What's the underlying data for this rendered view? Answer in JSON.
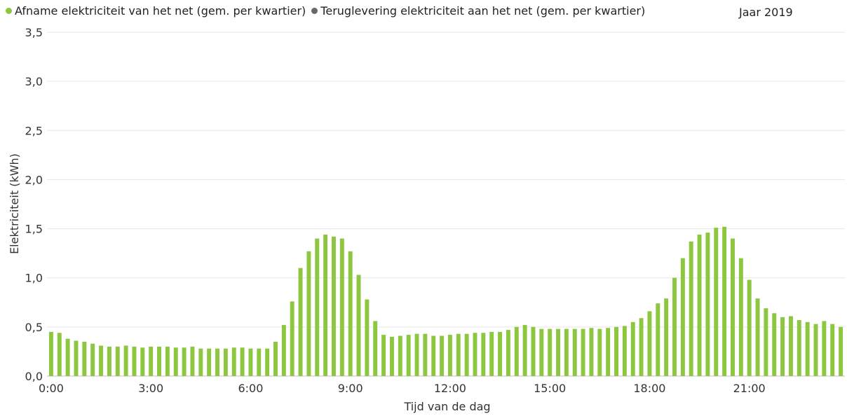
{
  "legend": [
    {
      "label": "Afname elektriciteit van het net (gem. per kwartier)",
      "color": "#8DC63F"
    },
    {
      "label": "Teruglevering elektriciteit aan het net (gem. per kwartier)",
      "color": "#5F6B6D"
    }
  ],
  "year_label": "Jaar 2019",
  "chart_data": {
    "type": "bar",
    "xlabel": "Tijd van de dag",
    "ylabel": "Elektriciteit (kWh)",
    "ylim": [
      0,
      3.5
    ],
    "yticks": [
      "0,0",
      "0,5",
      "1,0",
      "1,5",
      "2,0",
      "2,5",
      "3,0",
      "3,5"
    ],
    "xticks": [
      "0:00",
      "3:00",
      "6:00",
      "9:00",
      "12:00",
      "15:00",
      "18:00",
      "21:00"
    ],
    "grid": true,
    "legend_position": "top-left",
    "series": [
      {
        "name": "Afname elektriciteit van het net (gem. per kwartier)",
        "color": "#8DC63F",
        "values": [
          0.45,
          0.44,
          0.38,
          0.36,
          0.35,
          0.33,
          0.31,
          0.3,
          0.3,
          0.31,
          0.3,
          0.29,
          0.3,
          0.3,
          0.3,
          0.29,
          0.29,
          0.3,
          0.28,
          0.28,
          0.28,
          0.28,
          0.29,
          0.29,
          0.28,
          0.28,
          0.28,
          0.35,
          0.52,
          0.76,
          1.1,
          1.27,
          1.4,
          1.44,
          1.42,
          1.4,
          1.27,
          1.03,
          0.78,
          0.56,
          0.42,
          0.4,
          0.41,
          0.42,
          0.43,
          0.43,
          0.41,
          0.41,
          0.42,
          0.43,
          0.43,
          0.44,
          0.44,
          0.45,
          0.45,
          0.47,
          0.5,
          0.52,
          0.5,
          0.48,
          0.48,
          0.48,
          0.48,
          0.48,
          0.48,
          0.49,
          0.48,
          0.49,
          0.5,
          0.51,
          0.55,
          0.59,
          0.66,
          0.74,
          0.79,
          1.0,
          1.2,
          1.37,
          1.44,
          1.46,
          1.51,
          1.52,
          1.4,
          1.2,
          0.98,
          0.79,
          0.69,
          0.64,
          0.6,
          0.61,
          0.57,
          0.55,
          0.53,
          0.56,
          0.53,
          0.5
        ]
      },
      {
        "name": "Teruglevering elektriciteit aan het net (gem. per kwartier)",
        "color": "#5F6B6D",
        "values": []
      }
    ]
  }
}
